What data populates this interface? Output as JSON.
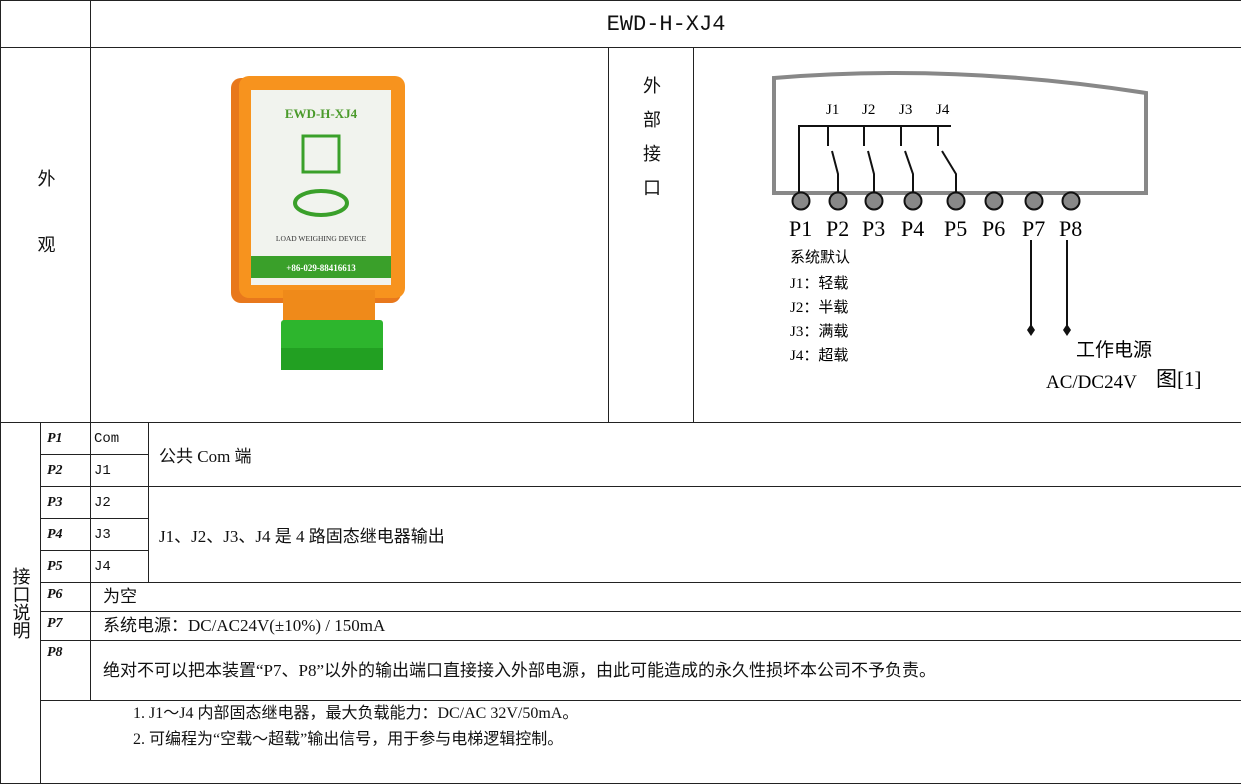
{
  "title": "EWD-H-XJ4",
  "appearance": {
    "label": "外观",
    "device_model": "EWD-H-XJ4",
    "device_caption": "LOAD WEIGHING DEVICE",
    "device_phone": "+86-029-88416613"
  },
  "interface": {
    "label": "外部接口",
    "relays": [
      "J1",
      "J2",
      "J3",
      "J4"
    ],
    "pins": [
      "P1",
      "P2",
      "P3",
      "P4",
      "P5",
      "P6",
      "P7",
      "P8"
    ],
    "default_heading": "系统默认",
    "defaults": [
      "J1：轻载",
      "J2：半载",
      "J3：满载",
      "J4：超载"
    ],
    "power_label": "工作电源",
    "power_spec": "AC/DC24V",
    "figure_label": "图[1]"
  },
  "description": {
    "label": "接口说明",
    "pins": [
      {
        "pin": "P1",
        "signal": "Com"
      },
      {
        "pin": "P2",
        "signal": "J1"
      },
      {
        "pin": "P3",
        "signal": "J2"
      },
      {
        "pin": "P4",
        "signal": "J3"
      },
      {
        "pin": "P5",
        "signal": "J4"
      }
    ],
    "group_notes": [
      "公共 Com 端",
      "J1、J2、J3、J4 是 4 路固态继电器输出"
    ],
    "others": [
      {
        "pin": "P6",
        "text": "为空"
      },
      {
        "pin": "P7",
        "text": "系统电源：DC/AC24V(±10%) / 150mA"
      },
      {
        "pin": "P8",
        "text": "绝对不可以把本装置“P7、P8”以外的输出端口直接接入外部电源，由此可能造成的永久性损坏本公司不予负责。"
      }
    ],
    "notes": [
      "1. J1～J4 内部固态继电器，最大负载能力：DC/AC 32V/50mA。",
      "2. 可编程为“空载～超载”输出信号，用于参与电梯逻辑控制。"
    ]
  }
}
